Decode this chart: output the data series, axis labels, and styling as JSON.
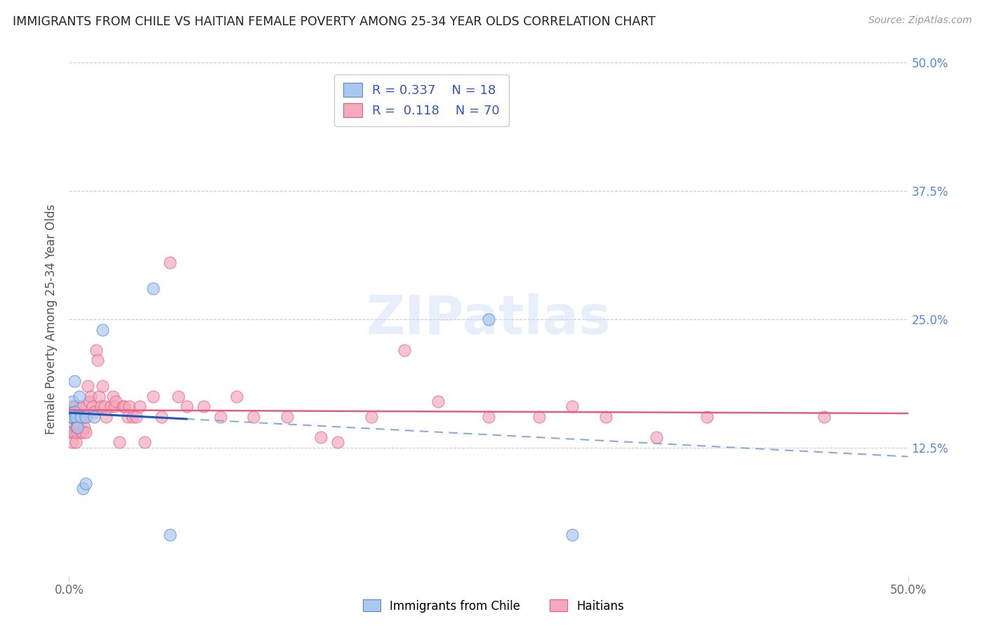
{
  "title": "IMMIGRANTS FROM CHILE VS HAITIAN FEMALE POVERTY AMONG 25-34 YEAR OLDS CORRELATION CHART",
  "source": "Source: ZipAtlas.com",
  "ylabel": "Female Poverty Among 25-34 Year Olds",
  "xlim": [
    0,
    0.5
  ],
  "ylim": [
    0,
    0.5
  ],
  "xticks": [
    0.0,
    0.5
  ],
  "xtick_labels": [
    "0.0%",
    "50.0%"
  ],
  "yticks_right": [
    0.125,
    0.25,
    0.375,
    0.5
  ],
  "ytick_labels_right": [
    "12.5%",
    "25.0%",
    "37.5%",
    "50.0%"
  ],
  "grid_yticks": [
    0.0,
    0.125,
    0.25,
    0.375,
    0.5
  ],
  "chile_color": "#a8c8f0",
  "chile_edge_color": "#5588cc",
  "haitian_color": "#f5a8be",
  "haitian_edge_color": "#e06080",
  "chile_R": 0.337,
  "chile_N": 18,
  "haitian_R": 0.118,
  "haitian_N": 70,
  "trend_chile_solid_color": "#2255bb",
  "trend_chile_dashed_color": "#88aadd",
  "trend_haitian_color": "#e06080",
  "watermark": "ZIPatlas",
  "legend_r_n_color": "#3355bb",
  "chile_x": [
    0.001,
    0.002,
    0.002,
    0.003,
    0.003,
    0.004,
    0.005,
    0.006,
    0.007,
    0.008,
    0.01,
    0.02,
    0.05,
    0.06,
    0.25,
    0.3,
    0.01,
    0.015
  ],
  "chile_y": [
    0.155,
    0.17,
    0.155,
    0.16,
    0.19,
    0.155,
    0.145,
    0.175,
    0.155,
    0.085,
    0.09,
    0.24,
    0.28,
    0.04,
    0.25,
    0.04,
    0.155,
    0.155
  ],
  "haitian_x": [
    0.001,
    0.001,
    0.002,
    0.002,
    0.002,
    0.003,
    0.003,
    0.003,
    0.004,
    0.004,
    0.004,
    0.005,
    0.005,
    0.005,
    0.006,
    0.006,
    0.007,
    0.007,
    0.008,
    0.008,
    0.009,
    0.01,
    0.01,
    0.011,
    0.012,
    0.013,
    0.014,
    0.015,
    0.016,
    0.017,
    0.018,
    0.019,
    0.02,
    0.021,
    0.022,
    0.025,
    0.026,
    0.027,
    0.028,
    0.03,
    0.032,
    0.033,
    0.035,
    0.036,
    0.038,
    0.04,
    0.042,
    0.045,
    0.05,
    0.055,
    0.06,
    0.065,
    0.07,
    0.08,
    0.09,
    0.1,
    0.11,
    0.13,
    0.15,
    0.16,
    0.18,
    0.2,
    0.22,
    0.25,
    0.28,
    0.3,
    0.32,
    0.35,
    0.38,
    0.45
  ],
  "haitian_y": [
    0.155,
    0.14,
    0.165,
    0.15,
    0.13,
    0.165,
    0.155,
    0.14,
    0.165,
    0.145,
    0.13,
    0.15,
    0.14,
    0.145,
    0.165,
    0.145,
    0.165,
    0.14,
    0.155,
    0.14,
    0.145,
    0.155,
    0.14,
    0.185,
    0.17,
    0.175,
    0.165,
    0.16,
    0.22,
    0.21,
    0.175,
    0.165,
    0.185,
    0.165,
    0.155,
    0.165,
    0.175,
    0.165,
    0.17,
    0.13,
    0.165,
    0.165,
    0.155,
    0.165,
    0.155,
    0.155,
    0.165,
    0.13,
    0.175,
    0.155,
    0.305,
    0.175,
    0.165,
    0.165,
    0.155,
    0.175,
    0.155,
    0.155,
    0.135,
    0.13,
    0.155,
    0.22,
    0.17,
    0.155,
    0.155,
    0.165,
    0.155,
    0.135,
    0.155,
    0.155
  ]
}
